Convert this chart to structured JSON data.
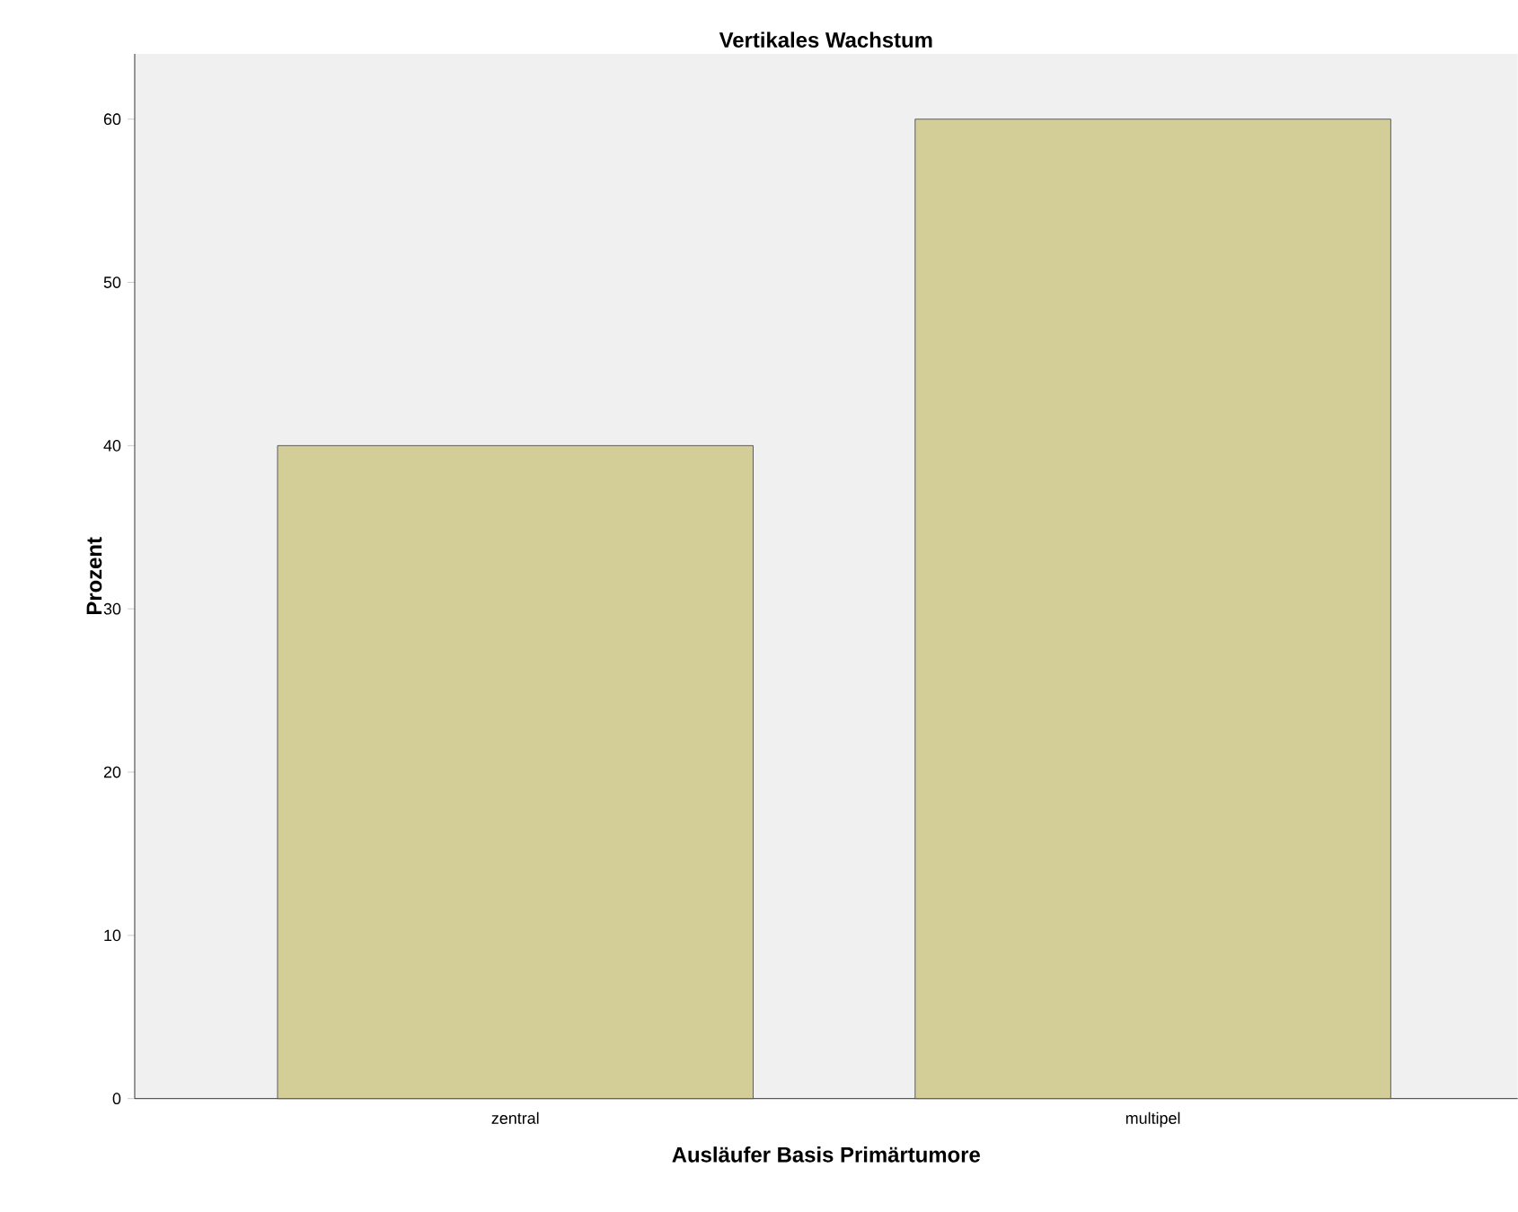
{
  "chart_data": {
    "type": "bar",
    "title": "Vertikales Wachstum",
    "xlabel": "Ausläufer Basis Primärtumore",
    "ylabel": "Prozent",
    "categories": [
      "zentral",
      "multipel"
    ],
    "values": [
      40,
      60
    ],
    "color": "#d3ce97",
    "ylim": [
      0,
      64
    ],
    "yticks": [
      0,
      10,
      20,
      30,
      40,
      50,
      60
    ],
    "grid": false
  }
}
